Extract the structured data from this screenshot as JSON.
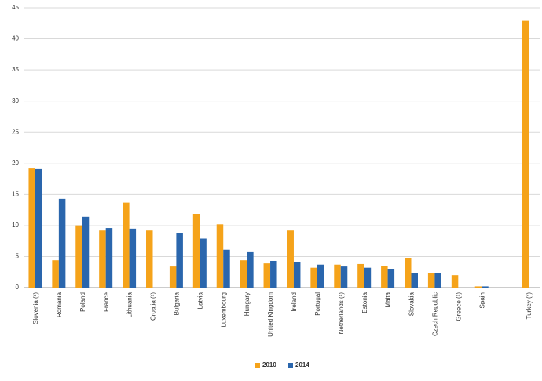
{
  "chart_data": {
    "type": "bar",
    "categories": [
      "Slovenia (¹)",
      "Romania",
      "Poland",
      "France",
      "Lithuania",
      "Croatia (¹)",
      "Bulgaria",
      "Latvia",
      "Luxembourg",
      "Hungary",
      "United Kingdom",
      "Ireland",
      "Portugal",
      "Netherlands (¹)",
      "Estonia",
      "Malta",
      "Slovakia",
      "Czech Republic",
      "Greece (¹)",
      "Spain",
      null,
      "Turkey (¹)"
    ],
    "series": [
      {
        "name": "2010",
        "color": "#f5a31a",
        "values": [
          19.2,
          4.4,
          9.9,
          9.2,
          13.7,
          9.2,
          3.4,
          11.8,
          10.2,
          4.4,
          3.9,
          9.2,
          3.2,
          3.7,
          3.8,
          3.5,
          4.7,
          2.3,
          2.0,
          0.2,
          null,
          42.9
        ]
      },
      {
        "name": "2014",
        "color": "#2a66ad",
        "values": [
          19.1,
          14.3,
          11.4,
          9.6,
          9.5,
          null,
          8.8,
          7.9,
          6.1,
          5.7,
          4.3,
          4.1,
          3.7,
          3.4,
          3.2,
          3.0,
          2.4,
          2.3,
          null,
          0.2,
          null,
          null
        ]
      }
    ],
    "ylim": [
      0,
      45
    ],
    "yticks": [
      0,
      5,
      10,
      15,
      20,
      25,
      30,
      35,
      40,
      45
    ],
    "grid": true,
    "legend": "bottom"
  }
}
